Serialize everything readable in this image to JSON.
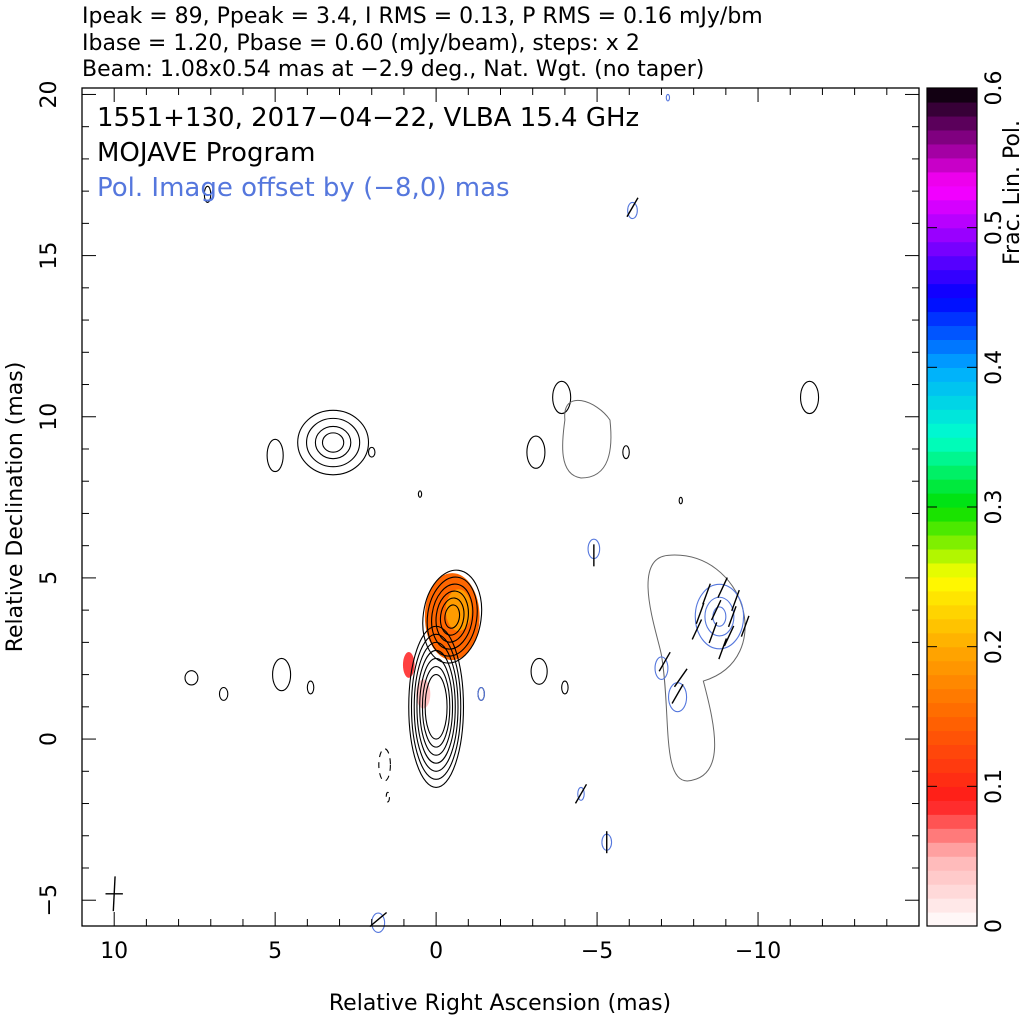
{
  "header": {
    "line1": "Ipeak = 89, Ppeak = 3.4, I RMS = 0.13, P RMS = 0.16 mJy/bm",
    "line2": "Ibase = 1.20, Pbase = 0.60 (mJy/beam), steps: x 2",
    "line3": "Beam: 1.08x0.54 mas at −2.9 deg., Nat. Wgt. (no taper)"
  },
  "chart_data": {
    "type": "heatmap",
    "xlabel": "Relative Right Ascension (mas)",
    "ylabel": "Relative Declination (mas)",
    "xlim": [
      11,
      -15
    ],
    "ylim": [
      -5.8,
      20.2
    ],
    "x_ticks": [
      10,
      5,
      0,
      -5,
      -10
    ],
    "x_tick_labels": [
      "10",
      "5",
      "0",
      "−5",
      "−10"
    ],
    "y_ticks": [
      20,
      15,
      10,
      5,
      0,
      -5
    ],
    "y_tick_labels": [
      "20",
      "15",
      "10",
      "5",
      "0",
      "−5"
    ],
    "annotations": [
      {
        "text": "1551+130, 2017−04−22, VLBA 15.4 GHz",
        "color": "#000000"
      },
      {
        "text": "MOJAVE Program",
        "color": "#000000"
      },
      {
        "text": "Pol. Image offset by (−8,0) mas",
        "color": "#5577dd"
      }
    ],
    "colorbar": {
      "label": "Frac. Lin. Pol.",
      "range": [
        0,
        0.6
      ],
      "ticks": [
        0,
        0.1,
        0.2,
        0.3,
        0.4,
        0.5,
        0.6
      ],
      "tick_labels": [
        "0",
        "0.1",
        "0.2",
        "0.3",
        "0.4",
        "0.5",
        "0.6"
      ],
      "colormap_stops": [
        {
          "v": 0.0,
          "color": "#ffffff"
        },
        {
          "v": 0.05,
          "color": "#ffb3b3"
        },
        {
          "v": 0.09,
          "color": "#ff1a1a"
        },
        {
          "v": 0.15,
          "color": "#ff6600"
        },
        {
          "v": 0.2,
          "color": "#ffaa00"
        },
        {
          "v": 0.25,
          "color": "#ffff00"
        },
        {
          "v": 0.3,
          "color": "#00e000"
        },
        {
          "v": 0.35,
          "color": "#00ffcc"
        },
        {
          "v": 0.4,
          "color": "#00aaff"
        },
        {
          "v": 0.45,
          "color": "#0000ff"
        },
        {
          "v": 0.5,
          "color": "#aa00ff"
        },
        {
          "v": 0.53,
          "color": "#ff00ff"
        },
        {
          "v": 0.6,
          "color": "#000000"
        }
      ]
    },
    "pol_offset_mas": [
      -8,
      0
    ],
    "total_intensity": {
      "color": "#000000",
      "components": [
        {
          "x": -0.5,
          "y": 3.8,
          "rx": 0.9,
          "ry": 1.45,
          "rot": 8,
          "levels": [
            1.0,
            0.85,
            0.7,
            0.55,
            0.4,
            0.25
          ]
        },
        {
          "x": 0.0,
          "y": 1.0,
          "rx": 0.85,
          "ry": 2.5,
          "rot": 0,
          "levels": [
            1.0,
            0.9,
            0.8,
            0.7,
            0.6,
            0.5,
            0.4
          ]
        },
        {
          "x": 3.2,
          "y": 9.2,
          "rx": 1.1,
          "ry": 1.0,
          "rot": 0,
          "levels": [
            1.0,
            0.75,
            0.5,
            0.3
          ]
        }
      ],
      "blobs": [
        {
          "x": 5.0,
          "y": 8.8,
          "rx": 0.25,
          "ry": 0.5
        },
        {
          "x": 2.0,
          "y": 8.9,
          "rx": 0.1,
          "ry": 0.15
        },
        {
          "x": 0.5,
          "y": 7.6,
          "rx": 0.05,
          "ry": 0.1
        },
        {
          "x": 7.6,
          "y": 1.9,
          "rx": 0.2,
          "ry": 0.22
        },
        {
          "x": 6.6,
          "y": 1.4,
          "rx": 0.13,
          "ry": 0.2
        },
        {
          "x": 4.8,
          "y": 2.0,
          "rx": 0.28,
          "ry": 0.5
        },
        {
          "x": 3.9,
          "y": 1.6,
          "rx": 0.1,
          "ry": 0.2
        },
        {
          "x": -1.4,
          "y": 1.4,
          "rx": 0.1,
          "ry": 0.2
        },
        {
          "x": -3.2,
          "y": 2.1,
          "rx": 0.25,
          "ry": 0.4
        },
        {
          "x": -4.0,
          "y": 1.6,
          "rx": 0.1,
          "ry": 0.2
        },
        {
          "x": -3.9,
          "y": 10.6,
          "rx": 0.28,
          "ry": 0.5
        },
        {
          "x": -3.1,
          "y": 8.9,
          "rx": 0.28,
          "ry": 0.5
        },
        {
          "x": -5.9,
          "y": 8.9,
          "rx": 0.1,
          "ry": 0.2
        },
        {
          "x": -7.6,
          "y": 7.4,
          "rx": 0.05,
          "ry": 0.1
        },
        {
          "x": -11.6,
          "y": 10.6,
          "rx": 0.28,
          "ry": 0.5
        },
        {
          "x": 7.1,
          "y": 16.9,
          "rx": 0.1,
          "ry": 0.25
        }
      ],
      "dashed": [
        {
          "x": 1.6,
          "y": -0.8,
          "rx": 0.18,
          "ry": 0.5
        },
        {
          "x": 1.5,
          "y": -1.8,
          "rx": 0.05,
          "ry": 0.15
        }
      ]
    },
    "pol_fraction_patches": [
      {
        "x": -0.5,
        "y": 3.8,
        "rx": 0.85,
        "ry": 1.35,
        "value": 0.15
      },
      {
        "x": -0.7,
        "y": 4.0,
        "rx": 0.4,
        "ry": 0.65,
        "value": 0.19
      },
      {
        "x": 0.85,
        "y": 2.3,
        "rx": 0.18,
        "ry": 0.4,
        "value": 0.08
      },
      {
        "x": 0.4,
        "y": 1.4,
        "rx": 0.22,
        "ry": 0.45,
        "value": 0.04
      }
    ],
    "pol_intensity_contours": {
      "color": "#5577dd",
      "items": [
        {
          "x": -8.8,
          "y": 3.8,
          "rx": 0.75,
          "ry": 1.0
        },
        {
          "x": -8.8,
          "y": 3.8,
          "rx": 0.45,
          "ry": 0.6
        },
        {
          "x": -8.8,
          "y": 3.8,
          "rx": 0.2,
          "ry": 0.3
        },
        {
          "x": -7.5,
          "y": 1.3,
          "rx": 0.28,
          "ry": 0.45
        },
        {
          "x": -7.0,
          "y": 2.2,
          "rx": 0.2,
          "ry": 0.35
        },
        {
          "x": -4.9,
          "y": 5.9,
          "rx": 0.18,
          "ry": 0.3
        },
        {
          "x": -6.1,
          "y": 16.4,
          "rx": 0.15,
          "ry": 0.25
        },
        {
          "x": -7.2,
          "y": 19.9,
          "rx": 0.05,
          "ry": 0.1
        },
        {
          "x": -5.3,
          "y": -3.2,
          "rx": 0.15,
          "ry": 0.25
        },
        {
          "x": -4.5,
          "y": -1.7,
          "rx": 0.1,
          "ry": 0.2
        },
        {
          "x": 1.8,
          "y": -5.7,
          "rx": 0.2,
          "ry": 0.3
        },
        {
          "x": -1.4,
          "y": 1.4,
          "rx": 0.1,
          "ry": 0.2
        }
      ]
    },
    "evpa_vectors": [
      {
        "x": -8.4,
        "y": 4.5,
        "angle": 70
      },
      {
        "x": -8.9,
        "y": 4.7,
        "angle": 65
      },
      {
        "x": -9.3,
        "y": 4.3,
        "angle": 70
      },
      {
        "x": -8.2,
        "y": 3.9,
        "angle": 70
      },
      {
        "x": -8.7,
        "y": 4.0,
        "angle": 65
      },
      {
        "x": -9.2,
        "y": 3.8,
        "angle": 70
      },
      {
        "x": -9.6,
        "y": 3.5,
        "angle": 70
      },
      {
        "x": -8.1,
        "y": 3.4,
        "angle": 65
      },
      {
        "x": -8.6,
        "y": 3.3,
        "angle": 70
      },
      {
        "x": -9.1,
        "y": 3.2,
        "angle": 65
      },
      {
        "x": -8.9,
        "y": 2.8,
        "angle": 70
      },
      {
        "x": -7.5,
        "y": 1.4,
        "angle": 60
      },
      {
        "x": -7.6,
        "y": 1.9,
        "angle": 55
      },
      {
        "x": -7.1,
        "y": 2.4,
        "angle": 60
      },
      {
        "x": -4.9,
        "y": 5.7,
        "angle": 90
      },
      {
        "x": -6.1,
        "y": 16.5,
        "angle": 60
      },
      {
        "x": -5.3,
        "y": -3.2,
        "angle": 90
      },
      {
        "x": -4.5,
        "y": -1.7,
        "angle": 60
      },
      {
        "x": 1.8,
        "y": -5.6,
        "angle": 40
      }
    ],
    "beam": {
      "x": 10.0,
      "y": -4.8,
      "major_mas": 1.08,
      "minor_mas": 0.54,
      "pa_deg": -2.9
    }
  }
}
